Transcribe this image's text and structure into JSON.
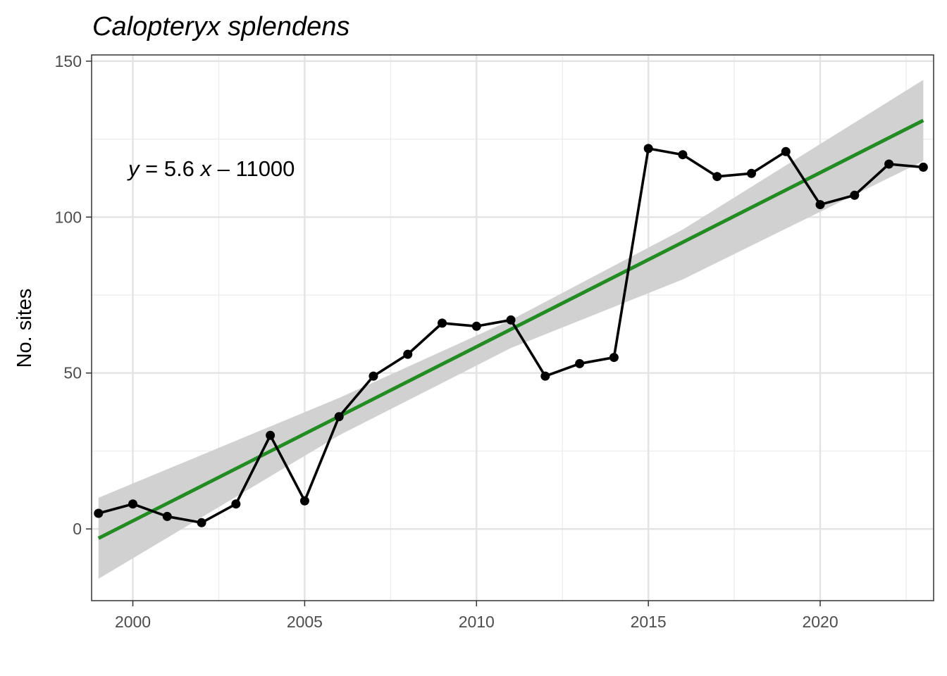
{
  "chart_data": {
    "type": "line",
    "title": "Calopteryx splendens",
    "xlabel": "",
    "ylabel": "No. sites",
    "xlim": [
      1998.8,
      2023.3
    ],
    "ylim": [
      -23,
      152
    ],
    "x_ticks": [
      2000,
      2005,
      2010,
      2015,
      2020
    ],
    "x_tick_labels": [
      "2000",
      "2005",
      "2010",
      "2015",
      "2020"
    ],
    "y_ticks": [
      0,
      50,
      100,
      150
    ],
    "y_tick_labels": [
      "0",
      "50",
      "100",
      "150"
    ],
    "grid": true,
    "legend": "none",
    "series": [
      {
        "x": [
          1999,
          2000,
          2001,
          2002,
          2003,
          2004,
          2005,
          2006,
          2007,
          2008,
          2009,
          2010,
          2011,
          2012,
          2013,
          2014,
          2015,
          2016,
          2017,
          2018,
          2019,
          2020,
          2021,
          2022,
          2023
        ],
        "values": [
          5,
          8,
          4,
          2,
          8,
          30,
          9,
          36,
          49,
          56,
          66,
          65,
          67,
          49,
          53,
          55,
          122,
          120,
          113,
          114,
          121,
          104,
          107,
          117,
          116
        ],
        "color": "#000000"
      }
    ],
    "trend": {
      "equation_parts": [
        "y",
        " = 5.6 ",
        "x",
        " – 11000"
      ],
      "slope": 5.6,
      "start": [
        1999,
        -3
      ],
      "end": [
        2023,
        131
      ],
      "ci_lower": [
        [
          1999,
          -16
        ],
        [
          2006,
          30
        ],
        [
          2011,
          58
        ],
        [
          2016,
          80
        ],
        [
          2023,
          118
        ]
      ],
      "ci_upper": [
        [
          1999,
          10
        ],
        [
          2006,
          42
        ],
        [
          2011,
          67
        ],
        [
          2016,
          96
        ],
        [
          2023,
          144
        ]
      ],
      "line_color": "#228B22",
      "band_color": "#d1d1d1"
    }
  }
}
